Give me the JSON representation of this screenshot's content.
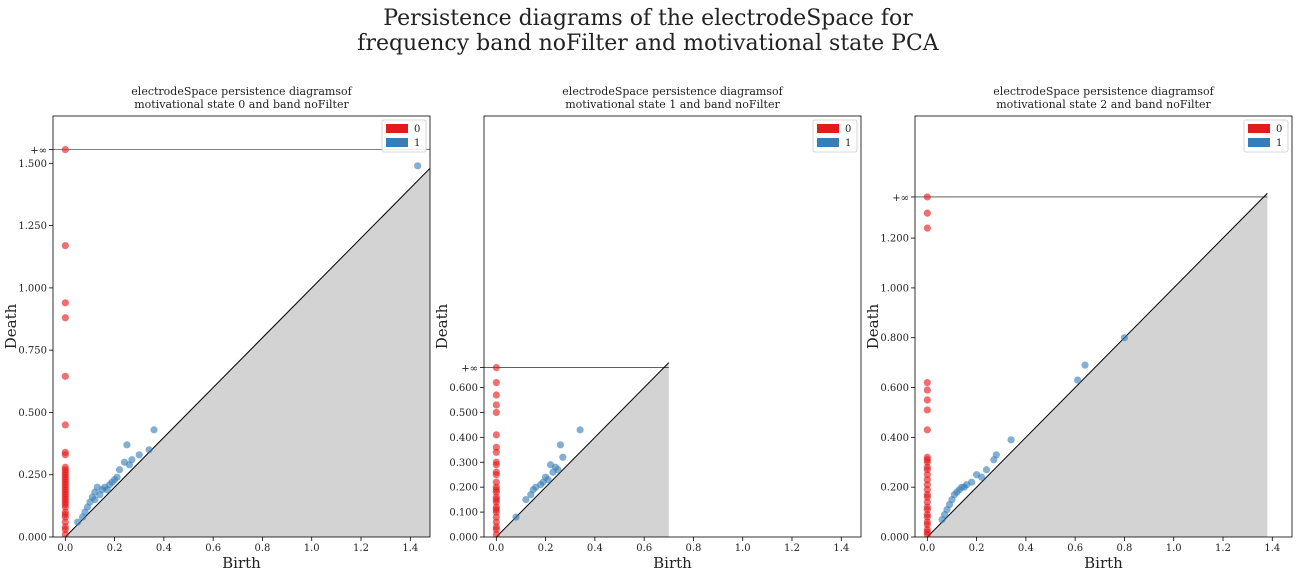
{
  "figure": {
    "title_line1": "Persistence diagrams of the electrodeSpace for",
    "title_line2": "frequency band noFilter and motivational state PCA"
  },
  "colors": {
    "dim0": "#e41a1c",
    "dim1": "#377eb8",
    "diag_fill": "#d3d3d3"
  },
  "chart_data": [
    {
      "type": "scatter",
      "title_line1": "electrodeSpace persistence diagramsof",
      "title_line2": "motivational state 0 and band noFilter",
      "xlabel": "Birth",
      "ylabel": "Death",
      "xlim": [
        -0.05,
        1.48
      ],
      "ylim": [
        0,
        1.69
      ],
      "xticks": [
        0,
        0.2,
        0.4,
        0.6,
        0.8,
        1.0,
        1.2,
        1.4
      ],
      "xtick_labels": [
        "0.0",
        "0.2",
        "0.4",
        "0.6",
        "0.8",
        "1.0",
        "1.2",
        "1.4"
      ],
      "yticks": [
        0,
        0.25,
        0.5,
        0.75,
        1.0,
        1.25,
        1.5
      ],
      "ytick_labels": [
        "0.000",
        "0.250",
        "0.500",
        "0.750",
        "1.000",
        "1.250",
        "1.500"
      ],
      "inf_level": 1.555,
      "inf_label": "+∞",
      "diag_max": 1.48,
      "legend": [
        "0",
        "1"
      ],
      "legend_position": "top-right",
      "series": [
        {
          "name": "0",
          "x": [
            0,
            0,
            0,
            0,
            0,
            0,
            0,
            0,
            0,
            0,
            0,
            0,
            0,
            0,
            0,
            0,
            0,
            0,
            0,
            0,
            0,
            0,
            0,
            0,
            0,
            0,
            0,
            0,
            0,
            0,
            0,
            0
          ],
          "y": [
            1.555,
            1.17,
            0.94,
            0.88,
            0.645,
            0.45,
            0.34,
            0.33,
            0.28,
            0.27,
            0.26,
            0.25,
            0.24,
            0.23,
            0.22,
            0.21,
            0.2,
            0.19,
            0.18,
            0.17,
            0.16,
            0.15,
            0.14,
            0.13,
            0.12,
            0.1,
            0.09,
            0.08,
            0.06,
            0.04,
            0.03,
            0.01
          ]
        },
        {
          "name": "1",
          "x": [
            1.43,
            0.36,
            0.34,
            0.25,
            0.27,
            0.24,
            0.3,
            0.22,
            0.2,
            0.18,
            0.15,
            0.13,
            0.12,
            0.11,
            0.14,
            0.1,
            0.09,
            0.08,
            0.16,
            0.19,
            0.21,
            0.05,
            0.07,
            0.26,
            0.17,
            0.12
          ],
          "y": [
            1.49,
            0.43,
            0.35,
            0.37,
            0.31,
            0.3,
            0.33,
            0.27,
            0.23,
            0.21,
            0.19,
            0.2,
            0.18,
            0.16,
            0.17,
            0.14,
            0.12,
            0.1,
            0.2,
            0.22,
            0.24,
            0.06,
            0.08,
            0.29,
            0.19,
            0.15
          ]
        }
      ]
    },
    {
      "type": "scatter",
      "title_line1": "electrodeSpace persistence diagramsof",
      "title_line2": "motivational state 1 and band noFilter",
      "xlabel": "Birth",
      "ylabel": "Death",
      "xlim": [
        -0.05,
        1.48
      ],
      "ylim": [
        0,
        1.69
      ],
      "xticks": [
        0,
        0.2,
        0.4,
        0.6,
        0.8,
        1.0,
        1.2,
        1.4
      ],
      "xtick_labels": [
        "0.0",
        "0.2",
        "0.4",
        "0.6",
        "0.8",
        "1.0",
        "1.2",
        "1.4"
      ],
      "yticks": [
        0,
        0.1,
        0.2,
        0.3,
        0.4,
        0.5,
        0.6
      ],
      "ytick_labels": [
        "0.000",
        "0.100",
        "0.200",
        "0.300",
        "0.400",
        "0.500",
        "0.600"
      ],
      "inf_level": 0.68,
      "inf_label": "+∞",
      "diag_max": 0.7,
      "legend": [
        "0",
        "1"
      ],
      "legend_position": "top-right",
      "series": [
        {
          "name": "0",
          "x": [
            0,
            0,
            0,
            0,
            0,
            0,
            0,
            0,
            0,
            0,
            0,
            0,
            0,
            0,
            0,
            0,
            0,
            0,
            0,
            0,
            0,
            0,
            0,
            0,
            0,
            0,
            0
          ],
          "y": [
            0.68,
            0.62,
            0.57,
            0.53,
            0.5,
            0.41,
            0.36,
            0.34,
            0.3,
            0.29,
            0.26,
            0.25,
            0.22,
            0.2,
            0.19,
            0.18,
            0.16,
            0.15,
            0.14,
            0.12,
            0.11,
            0.1,
            0.08,
            0.06,
            0.04,
            0.03,
            0.01
          ]
        },
        {
          "name": "1",
          "x": [
            0.34,
            0.26,
            0.22,
            0.24,
            0.27,
            0.23,
            0.2,
            0.18,
            0.16,
            0.15,
            0.14,
            0.12,
            0.08,
            0.21,
            0.25,
            0.19
          ],
          "y": [
            0.43,
            0.37,
            0.29,
            0.28,
            0.32,
            0.26,
            0.24,
            0.21,
            0.2,
            0.19,
            0.17,
            0.15,
            0.08,
            0.23,
            0.27,
            0.22
          ]
        }
      ]
    },
    {
      "type": "scatter",
      "title_line1": "electrodeSpace persistence diagramsof",
      "title_line2": "motivational state 2 and band noFilter",
      "xlabel": "Birth",
      "ylabel": "Death",
      "xlim": [
        -0.05,
        1.48
      ],
      "ylim": [
        0,
        1.69
      ],
      "xticks": [
        0,
        0.2,
        0.4,
        0.6,
        0.8,
        1.0,
        1.2,
        1.4
      ],
      "xtick_labels": [
        "0.0",
        "0.2",
        "0.4",
        "0.6",
        "0.8",
        "1.0",
        "1.2",
        "1.4"
      ],
      "yticks": [
        0,
        0.2,
        0.4,
        0.6,
        0.8,
        1.0,
        1.2
      ],
      "ytick_labels": [
        "0.000",
        "0.200",
        "0.400",
        "0.600",
        "0.800",
        "1.000",
        "1.200"
      ],
      "inf_level": 1.365,
      "inf_label": "+∞",
      "diag_max": 1.38,
      "legend": [
        "0",
        "1"
      ],
      "legend_position": "top-right",
      "series": [
        {
          "name": "0",
          "x": [
            0,
            0,
            0,
            0,
            0,
            0,
            0,
            0,
            0,
            0,
            0,
            0,
            0,
            0,
            0,
            0,
            0,
            0,
            0,
            0,
            0,
            0,
            0,
            0,
            0,
            0,
            0,
            0,
            0
          ],
          "y": [
            1.365,
            1.3,
            1.24,
            0.62,
            0.59,
            0.55,
            0.51,
            0.43,
            0.32,
            0.31,
            0.3,
            0.28,
            0.27,
            0.25,
            0.23,
            0.21,
            0.19,
            0.17,
            0.16,
            0.14,
            0.12,
            0.11,
            0.09,
            0.08,
            0.06,
            0.05,
            0.03,
            0.02,
            0.01
          ]
        },
        {
          "name": "1",
          "x": [
            0.8,
            0.64,
            0.61,
            0.34,
            0.28,
            0.27,
            0.24,
            0.2,
            0.18,
            0.15,
            0.13,
            0.12,
            0.11,
            0.1,
            0.09,
            0.08,
            0.07,
            0.06,
            0.16,
            0.22,
            0.14
          ],
          "y": [
            0.8,
            0.69,
            0.63,
            0.39,
            0.33,
            0.31,
            0.27,
            0.25,
            0.22,
            0.2,
            0.19,
            0.18,
            0.17,
            0.15,
            0.13,
            0.11,
            0.09,
            0.07,
            0.21,
            0.24,
            0.2
          ]
        }
      ]
    }
  ]
}
